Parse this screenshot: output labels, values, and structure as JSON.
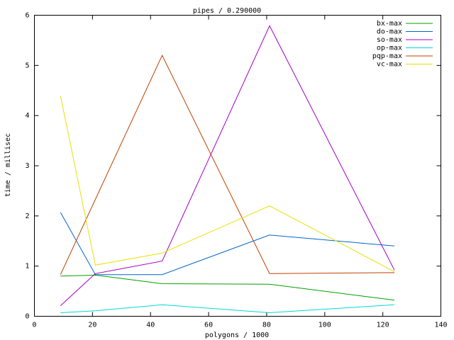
{
  "chart_data": {
    "type": "line",
    "title": "pipes / 0.290000",
    "x_label": "polygons / 1000",
    "y_label": "time / millisec",
    "x": [
      9,
      21,
      44,
      81,
      124
    ],
    "series": [
      {
        "name": "bx-max",
        "color": "#00a000",
        "values": [
          0.8,
          0.82,
          0.65,
          0.64,
          0.32
        ]
      },
      {
        "name": "do-max",
        "color": "#0066cc",
        "values": [
          2.07,
          0.83,
          0.83,
          1.62,
          1.4
        ]
      },
      {
        "name": "so-max",
        "color": "#a000c8",
        "values": [
          0.21,
          0.85,
          1.1,
          5.79,
          0.92
        ]
      },
      {
        "name": "op-max",
        "color": "#00d8d8",
        "values": [
          0.07,
          0.11,
          0.23,
          0.07,
          0.23
        ]
      },
      {
        "name": "pqp-max",
        "color": "#c04000",
        "values": [
          0.83,
          2.33,
          5.2,
          0.85,
          0.87
        ]
      },
      {
        "name": "vc-max",
        "color": "#e8e000",
        "values": [
          4.39,
          1.02,
          1.26,
          2.2,
          0.89
        ]
      }
    ],
    "xlim": [
      0,
      140
    ],
    "xticks": [
      0,
      20,
      40,
      60,
      80,
      100,
      120,
      140
    ],
    "ylim": [
      0,
      6
    ],
    "yticks": [
      0,
      1,
      2,
      3,
      4,
      5,
      6
    ],
    "legend": "top-right"
  }
}
